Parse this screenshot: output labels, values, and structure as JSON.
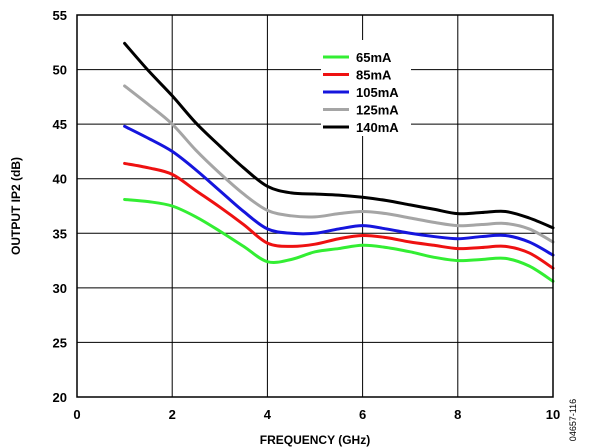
{
  "chart_data": {
    "type": "line",
    "title": "",
    "xlabel": "FREQUENCY (GHz)",
    "ylabel": "OUTPUT IP2 (dB)",
    "xlim": [
      0,
      10
    ],
    "ylim": [
      20,
      55
    ],
    "x_ticks": [
      "0",
      "2",
      "4",
      "6",
      "8",
      "10"
    ],
    "y_ticks": [
      "20",
      "25",
      "30",
      "35",
      "40",
      "45",
      "50",
      "55"
    ],
    "grid": true,
    "legend_position": "top-center",
    "series": [
      {
        "name": "65mA",
        "color": "#33ee33",
        "x": [
          1,
          1.5,
          2,
          2.5,
          3,
          3.5,
          4,
          4.5,
          5,
          5.5,
          6,
          6.5,
          7,
          7.5,
          8,
          8.5,
          9,
          9.5,
          10
        ],
        "y": [
          38.1,
          37.9,
          37.5,
          36.5,
          35.2,
          33.8,
          32.4,
          32.6,
          33.3,
          33.6,
          33.9,
          33.7,
          33.3,
          32.8,
          32.5,
          32.6,
          32.7,
          32.0,
          30.6
        ]
      },
      {
        "name": "85mA",
        "color": "#ee1111",
        "x": [
          1,
          1.5,
          2,
          2.5,
          3,
          3.5,
          4,
          4.5,
          5,
          5.5,
          6,
          6.5,
          7,
          7.5,
          8,
          8.5,
          9,
          9.5,
          10
        ],
        "y": [
          41.4,
          41.0,
          40.4,
          38.9,
          37.4,
          35.8,
          34.1,
          33.8,
          34.0,
          34.5,
          34.8,
          34.6,
          34.2,
          33.9,
          33.6,
          33.7,
          33.8,
          33.2,
          31.8
        ]
      },
      {
        "name": "105mA",
        "color": "#1515dd",
        "x": [
          1,
          1.5,
          2,
          2.5,
          3,
          3.5,
          4,
          4.5,
          5,
          5.5,
          6,
          6.5,
          7,
          7.5,
          8,
          8.5,
          9,
          9.5,
          10
        ],
        "y": [
          44.8,
          43.7,
          42.5,
          40.8,
          38.9,
          37.0,
          35.4,
          35.0,
          35.0,
          35.4,
          35.7,
          35.4,
          35.0,
          34.7,
          34.5,
          34.7,
          34.8,
          34.2,
          33.0
        ]
      },
      {
        "name": "125mA",
        "color": "#a5a5a5",
        "x": [
          1,
          1.5,
          2,
          2.5,
          3,
          3.5,
          4,
          4.5,
          5,
          5.5,
          6,
          6.5,
          7,
          7.5,
          8,
          8.5,
          9,
          9.5,
          10
        ],
        "y": [
          48.5,
          46.8,
          45.0,
          42.6,
          40.5,
          38.6,
          37.1,
          36.6,
          36.5,
          36.8,
          37.0,
          36.8,
          36.4,
          36.0,
          35.7,
          35.8,
          35.9,
          35.4,
          34.2
        ]
      },
      {
        "name": "140mA",
        "color": "#000000",
        "x": [
          1,
          1.5,
          2,
          2.5,
          3,
          3.5,
          4,
          4.5,
          5,
          5.5,
          6,
          6.5,
          7,
          7.5,
          8,
          8.5,
          9,
          9.5,
          10
        ],
        "y": [
          52.4,
          49.9,
          47.6,
          45.1,
          43.0,
          41.0,
          39.3,
          38.7,
          38.6,
          38.5,
          38.3,
          38.0,
          37.6,
          37.2,
          36.8,
          36.9,
          37.0,
          36.4,
          35.5
        ]
      }
    ]
  },
  "figure_code": "04657-116"
}
